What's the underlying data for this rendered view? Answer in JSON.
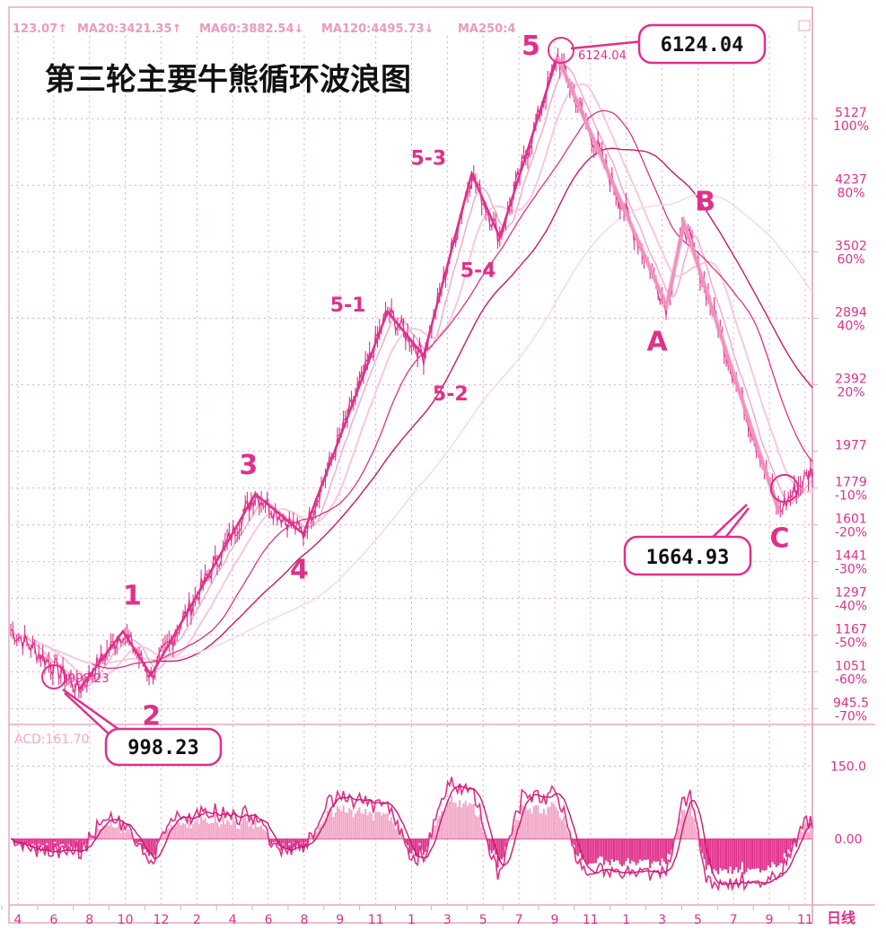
{
  "colors": {
    "accent": "#e0308a",
    "light": "#f4a6c8",
    "faint": "#f7c8dc",
    "grid": "#e6a8c4",
    "text": "#111111"
  },
  "legend": {
    "ma_left": "123.07↑",
    "ma20": "MA20:3421.35↑",
    "ma60": "MA60:3882.54↓",
    "ma120": "MA120:4495.73↓",
    "ma250": "MA250:4"
  },
  "title": "第三轮主要牛熊循环波浪图",
  "chart_data": [
    {
      "type": "line",
      "title": "第三轮主要牛熊循环波浪图",
      "scale": "log",
      "ylim": [
        920,
        6500
      ],
      "y_ticks": [
        {
          "value": 5127,
          "pct": "100%"
        },
        {
          "value": 4237,
          "pct": "80%"
        },
        {
          "value": 3502,
          "pct": "60%"
        },
        {
          "value": 2894,
          "pct": "40%"
        },
        {
          "value": 2392,
          "pct": "20%"
        },
        {
          "value": 1977,
          "pct": ""
        },
        {
          "value": 1779,
          "pct": "-10%"
        },
        {
          "value": 1601,
          "pct": "-20%"
        },
        {
          "value": 1441,
          "pct": "-30%"
        },
        {
          "value": 1297,
          "pct": "-40%"
        },
        {
          "value": 1167,
          "pct": "-50%"
        },
        {
          "value": 1051,
          "pct": "-60%"
        },
        {
          "value": 945.5,
          "pct": "-70%"
        }
      ],
      "x_ticks": [
        "4",
        "6",
        "8",
        "10",
        "12",
        "2",
        "4",
        "6",
        "8",
        "9",
        "11",
        "1",
        "3",
        "5",
        "7",
        "9",
        "11",
        "1",
        "3",
        "5",
        "7",
        "9",
        "11"
      ],
      "period_label": "日线",
      "wave_points": [
        {
          "label": "",
          "t": 0.085,
          "value": 998.23
        },
        {
          "label": "1",
          "t": 0.14,
          "value": 1180
        },
        {
          "label": "2",
          "t": 0.175,
          "value": 1040
        },
        {
          "label": "3",
          "t": 0.305,
          "value": 1750
        },
        {
          "label": "4",
          "t": 0.365,
          "value": 1560
        },
        {
          "label": "5-1",
          "t": 0.47,
          "value": 2950
        },
        {
          "label": "5-2",
          "t": 0.515,
          "value": 2600
        },
        {
          "label": "5-3",
          "t": 0.575,
          "value": 4380
        },
        {
          "label": "5-4",
          "t": 0.61,
          "value": 3650
        },
        {
          "label": "5",
          "t": 0.682,
          "value": 6124.04
        },
        {
          "label": "A",
          "t": 0.818,
          "value": 3000
        },
        {
          "label": "B",
          "t": 0.84,
          "value": 3800
        },
        {
          "label": "C",
          "t": 0.958,
          "value": 1664.93
        }
      ],
      "annotations": [
        {
          "text": "998.23",
          "where": "bottom-left"
        },
        {
          "text": "6124.04",
          "where": "top"
        },
        {
          "text": "1664.93",
          "where": "bottom-right"
        }
      ],
      "peak_marker_text": "6124.04",
      "low_marker_text": "998.23"
    },
    {
      "type": "line",
      "indicator": "ACD",
      "indicator_label": "ACD:161.70",
      "ylim": [
        -130,
        230
      ],
      "y_ticks": [
        150.0,
        0.0
      ],
      "y_tick_labels": [
        "150.0",
        "0.00"
      ]
    }
  ]
}
